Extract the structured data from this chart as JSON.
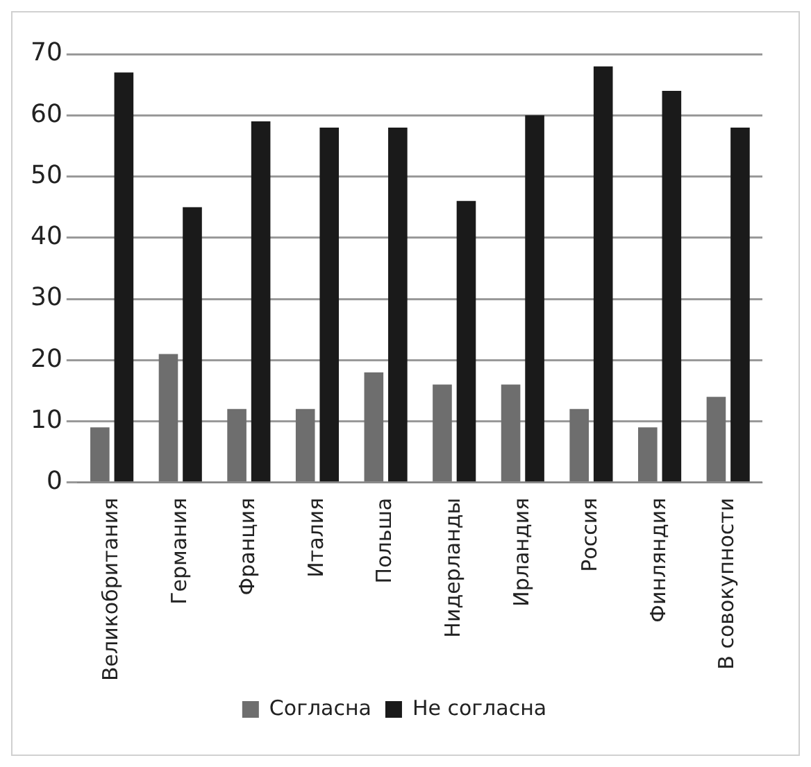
{
  "chart_data": {
    "type": "bar",
    "categories": [
      "Великобритания",
      "Германия",
      "Франция",
      "Италия",
      "Польша",
      "Нидерланды",
      "Ирландия",
      "Россия",
      "Финляндия",
      "В совокупности"
    ],
    "series": [
      {
        "name": "Согласна",
        "color": "#6e6e6e",
        "values": [
          9,
          21,
          12,
          12,
          18,
          16,
          16,
          12,
          9,
          14
        ]
      },
      {
        "name": "Не согласна",
        "color": "#1a1a1a",
        "values": [
          67,
          45,
          59,
          58,
          58,
          46,
          60,
          68,
          64,
          58
        ]
      }
    ],
    "ylim": [
      0,
      70
    ],
    "yticks": [
      0,
      10,
      20,
      30,
      40,
      50,
      60,
      70
    ],
    "grid": "y",
    "legend": "bottom"
  }
}
